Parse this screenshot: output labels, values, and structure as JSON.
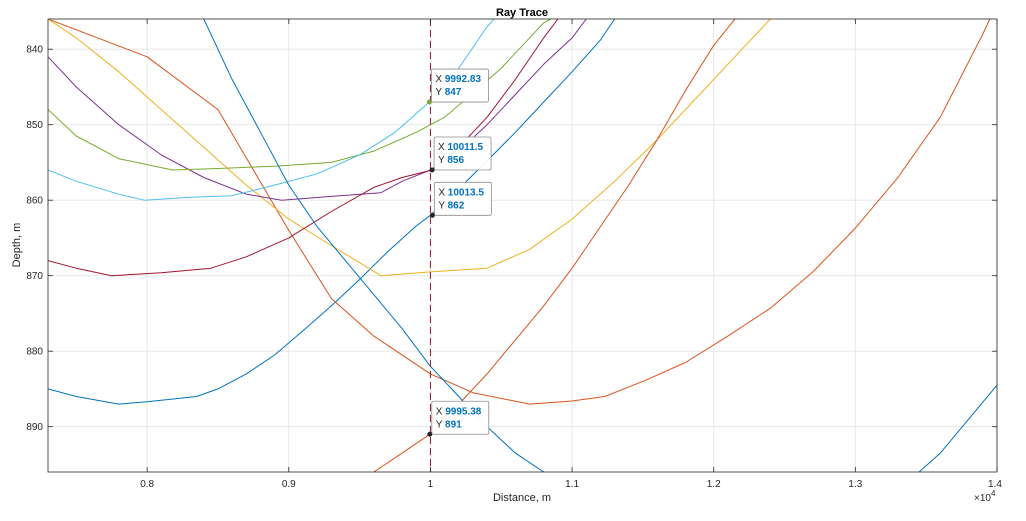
{
  "chart_data": {
    "type": "line",
    "title": "Ray Trace",
    "xlabel": "Distance, m",
    "ylabel": "Depth, m",
    "x_exponent_label": "×10",
    "x_exponent_power": "4",
    "xlim": [
      7300,
      14000
    ],
    "ylim": [
      836,
      896
    ],
    "y_reversed": true,
    "x_ticks": [
      8000,
      9000,
      10000,
      11000,
      12000,
      13000,
      14000
    ],
    "x_tick_labels": [
      "0.8",
      "0.9",
      "1",
      "1.1",
      "1.2",
      "1.3",
      "1.4"
    ],
    "y_ticks": [
      840,
      850,
      860,
      870,
      880,
      890
    ],
    "y_tick_labels": [
      "840",
      "850",
      "860",
      "870",
      "880",
      "890"
    ],
    "grid": true,
    "reference_line": {
      "x": 10000,
      "color": "#A2142F",
      "style": "dashed"
    },
    "series": [
      {
        "color": "#0072BD",
        "points": [
          [
            7300,
            885
          ],
          [
            7500,
            886
          ],
          [
            7800,
            887
          ],
          [
            8000,
            886.7
          ],
          [
            8350,
            886
          ],
          [
            8500,
            885
          ],
          [
            8700,
            883
          ],
          [
            8900,
            880.5
          ],
          [
            9100,
            877.3
          ],
          [
            9300,
            874
          ],
          [
            9500,
            870.5
          ],
          [
            9700,
            866.8
          ],
          [
            9900,
            863.4
          ],
          [
            10000,
            862
          ],
          [
            10200,
            858.5
          ],
          [
            10400,
            854.8
          ],
          [
            10600,
            851
          ],
          [
            10800,
            847
          ],
          [
            11000,
            843
          ],
          [
            11200,
            838.8
          ],
          [
            11300,
            836
          ]
        ]
      },
      {
        "color": "#D95319",
        "points": [
          [
            7300,
            836
          ],
          [
            8000,
            841
          ],
          [
            8500,
            848
          ],
          [
            9000,
            864
          ],
          [
            9300,
            873
          ],
          [
            9600,
            878
          ],
          [
            10000,
            883
          ],
          [
            10300,
            885.5
          ],
          [
            10700,
            887
          ],
          [
            11000,
            886.6
          ],
          [
            11230,
            886
          ],
          [
            11500,
            884
          ],
          [
            11800,
            881.5
          ],
          [
            12100,
            878
          ],
          [
            12400,
            874.3
          ],
          [
            12700,
            869.5
          ],
          [
            13000,
            863.7
          ],
          [
            13300,
            857
          ],
          [
            13600,
            849
          ],
          [
            13900,
            838
          ],
          [
            14000,
            834
          ]
        ]
      },
      {
        "color": "#EDB120",
        "points": [
          [
            7300,
            836
          ],
          [
            7500,
            838.5
          ],
          [
            7800,
            843
          ],
          [
            8100,
            848
          ],
          [
            8400,
            853
          ],
          [
            8700,
            858
          ],
          [
            9000,
            862.5
          ],
          [
            9300,
            866
          ],
          [
            9650,
            870
          ],
          [
            10000,
            869.5
          ],
          [
            10400,
            869
          ],
          [
            10700,
            866.5
          ],
          [
            11000,
            862.5
          ],
          [
            11300,
            857.5
          ],
          [
            11600,
            852
          ],
          [
            11900,
            846
          ],
          [
            12200,
            840
          ],
          [
            12400,
            836
          ]
        ]
      },
      {
        "color": "#7E2F8E",
        "points": [
          [
            7300,
            841
          ],
          [
            7500,
            845
          ],
          [
            7800,
            850
          ],
          [
            8100,
            854
          ],
          [
            8400,
            857
          ],
          [
            8700,
            859.2
          ],
          [
            8950,
            860
          ],
          [
            9300,
            859.5
          ],
          [
            9650,
            859
          ],
          [
            9800,
            857.5
          ],
          [
            10000,
            856
          ],
          [
            10200,
            853.5
          ],
          [
            10400,
            850
          ],
          [
            10600,
            846
          ],
          [
            10800,
            842
          ],
          [
            11000,
            838.5
          ],
          [
            11100,
            836
          ]
        ]
      },
      {
        "color": "#77AC30",
        "points": [
          [
            7300,
            848
          ],
          [
            7500,
            851.5
          ],
          [
            7800,
            854.5
          ],
          [
            8180,
            856
          ],
          [
            8500,
            855.8
          ],
          [
            8900,
            855.5
          ],
          [
            9300,
            855
          ],
          [
            9600,
            853.5
          ],
          [
            9900,
            851
          ],
          [
            10100,
            849
          ],
          [
            10350,
            845
          ],
          [
            10500,
            842.5
          ],
          [
            10800,
            836.5
          ],
          [
            10850,
            836
          ]
        ]
      },
      {
        "color": "#4DBEEE",
        "points": [
          [
            7300,
            856
          ],
          [
            7500,
            857.5
          ],
          [
            7800,
            859.2
          ],
          [
            7980,
            860
          ],
          [
            8300,
            859.6
          ],
          [
            8600,
            859.4
          ],
          [
            8900,
            858
          ],
          [
            9200,
            856.5
          ],
          [
            9500,
            854
          ],
          [
            9750,
            851
          ],
          [
            9992.83,
            847
          ],
          [
            10200,
            842.5
          ],
          [
            10400,
            837
          ],
          [
            10450,
            836
          ]
        ]
      },
      {
        "color": "#A2142F",
        "points": [
          [
            7300,
            868
          ],
          [
            7500,
            869
          ],
          [
            7750,
            870
          ],
          [
            8100,
            869.6
          ],
          [
            8450,
            869
          ],
          [
            8700,
            867.5
          ],
          [
            9000,
            865
          ],
          [
            9300,
            861.5
          ],
          [
            9600,
            858.3
          ],
          [
            9800,
            857
          ],
          [
            10011.5,
            856
          ],
          [
            10200,
            853
          ],
          [
            10400,
            849
          ],
          [
            10600,
            844
          ],
          [
            10800,
            838.5
          ],
          [
            10900,
            836
          ]
        ]
      },
      {
        "color": "#D95319",
        "points": [
          [
            9600,
            896
          ],
          [
            9800,
            893.5
          ],
          [
            9995.38,
            891
          ],
          [
            10200,
            887
          ],
          [
            10400,
            883
          ],
          [
            10600,
            878.5
          ],
          [
            10800,
            874
          ],
          [
            11000,
            869
          ],
          [
            11200,
            863.5
          ],
          [
            11400,
            858
          ],
          [
            11600,
            852
          ],
          [
            11800,
            845.5
          ],
          [
            12000,
            839.5
          ],
          [
            12150,
            836
          ]
        ]
      },
      {
        "color": "#0072BD",
        "points": [
          [
            8400,
            836
          ],
          [
            8600,
            844
          ],
          [
            8800,
            851
          ],
          [
            9000,
            858
          ],
          [
            9200,
            863.5
          ],
          [
            9400,
            868
          ],
          [
            9600,
            872.5
          ],
          [
            9800,
            877
          ],
          [
            10000,
            882
          ],
          [
            10200,
            886
          ],
          [
            10400,
            890
          ],
          [
            10600,
            893.5
          ],
          [
            10800,
            896
          ]
        ]
      },
      {
        "color": "#0072BD",
        "points": [
          [
            13450,
            896
          ],
          [
            13600,
            893.5
          ],
          [
            13800,
            889
          ],
          [
            14000,
            884.5
          ]
        ]
      }
    ],
    "datatips": [
      {
        "x_label": "X",
        "y_label": "Y",
        "x_value": "9992.83",
        "y_value": "847",
        "x": 9992.83,
        "y": 847,
        "marker_color": "#77AC30"
      },
      {
        "x_label": "X",
        "y_label": "Y",
        "x_value": "10011.5",
        "y_value": "856",
        "x": 10011.5,
        "y": 856,
        "marker_color": "#262626"
      },
      {
        "x_label": "X",
        "y_label": "Y",
        "x_value": "10013.5",
        "y_value": "862",
        "x": 10013.5,
        "y": 862,
        "marker_color": "#262626"
      },
      {
        "x_label": "X",
        "y_label": "Y",
        "x_value": "9995.38",
        "y_value": "891",
        "x": 9995.38,
        "y": 891,
        "marker_color": "#262626"
      }
    ]
  }
}
